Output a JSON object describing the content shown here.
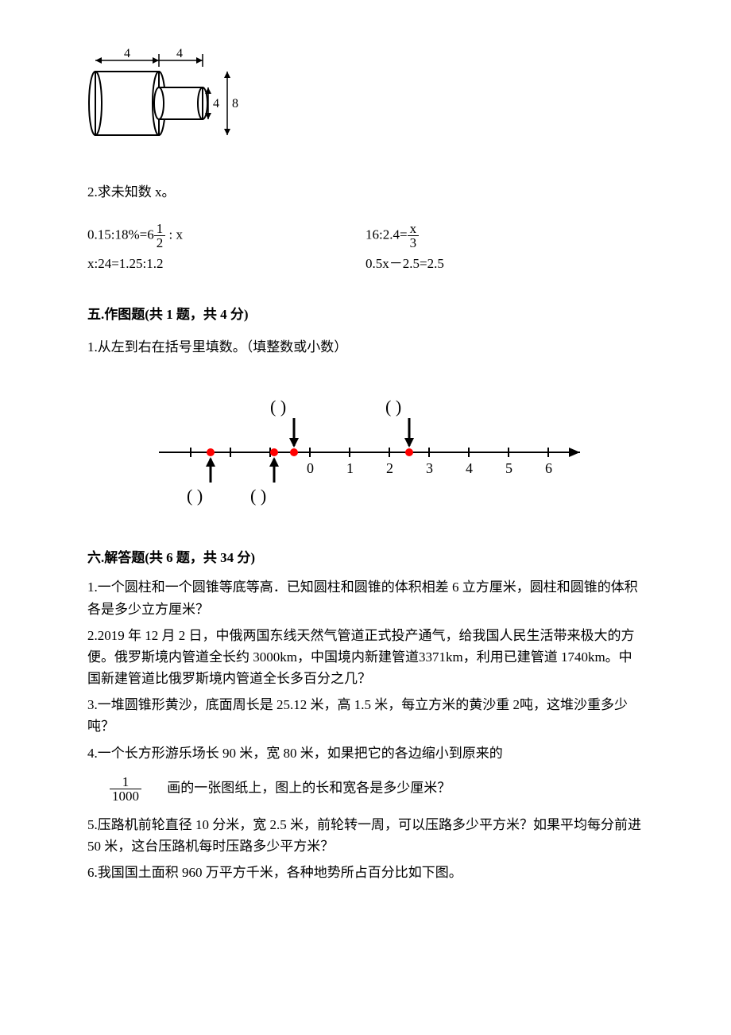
{
  "figure1": {
    "outer_width_label": "4",
    "inner_width_label": "4",
    "inner_height_label": "4",
    "outer_height_label": "8",
    "stroke": "#000000",
    "stroke_width": 2
  },
  "q2": {
    "text": "2.求未知数 x。",
    "rows": [
      {
        "left": "0.15:18%=6½ : x",
        "right": "16:2.4=x⁄3"
      },
      {
        "left": "x:24=1.25:1.2",
        "right": "0.5x－2.5=2.5"
      }
    ],
    "eq1_left_pre": "0.15:18%=6",
    "eq1_frac_num": "1",
    "eq1_frac_den": "2",
    "eq1_left_post": " : x",
    "eq1_right_pre": "16:2.4=",
    "eq1_right_num": "x",
    "eq1_right_den": "3",
    "eq2_left": "x:24=1.25:1.2",
    "eq2_right": "0.5x－2.5=2.5"
  },
  "section5": {
    "title": "五.作图题(共 1 题，共 4 分)",
    "q1": "1.从左到右在括号里填数。（填整数或小数）",
    "numberline": {
      "ticks": [
        "0",
        "1",
        "2",
        "3",
        "4",
        "5",
        "6"
      ],
      "left_extra_ticks": 3,
      "red_dots_x": [
        -2.5,
        -0.9,
        -0.4,
        2.5
      ],
      "top_brackets_x": [
        -0.4,
        2.5
      ],
      "bottom_brackets_x": [
        -2.5,
        -0.9
      ],
      "axis_color": "#000000",
      "dot_color": "#ff0000",
      "tick_fontsize": 18,
      "bracket_fontsize": 22,
      "stroke_width": 2
    }
  },
  "section6": {
    "title": "六.解答题(共 6 题，共 34 分)",
    "items": [
      "1.一个圆柱和一个圆锥等底等高．已知圆柱和圆锥的体积相差 6 立方厘米，圆柱和圆锥的体积各是多少立方厘米？",
      "2.2019 年 12 月 2 日，中俄两国东线天然气管道正式投产通气，给我国人民生活带来极大的方便。俄罗斯境内管道全长约 3000km，中国境内新建管道3371km，利用已建管道 1740km。中国新建管道比俄罗斯境内管道全长多百分之几？",
      "3.一堆圆锥形黄沙，底面周长是 25.12 米，高 1.5 米，每立方米的黄沙重 2吨，这堆沙重多少吨？",
      "4.一个长方形游乐场长 90 米，宽 80 米，如果把它的各边缩小到原来的",
      "5.压路机前轮直径 10 分米，宽 2.5 米，前轮转一周，可以压路多少平方米？如果平均每分前进 50 米，这台压路机每时压路多少平方米？",
      "6.我国国土面积 960 万平方千米，各种地势所占百分比如下图。"
    ],
    "item4_frac_num": "1",
    "item4_frac_den": "1000",
    "item4_tail": "画的一张图纸上，图上的长和宽各是多少厘米？"
  }
}
